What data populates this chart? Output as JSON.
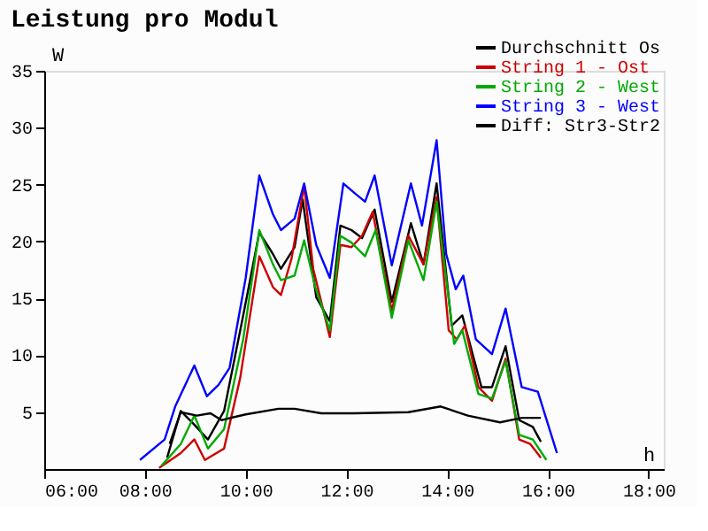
{
  "chart_data": {
    "type": "line",
    "title": "Leistung pro Modul",
    "xlabel": "h",
    "ylabel": "W",
    "xlim": [
      6,
      18.3
    ],
    "xticks": [
      {
        "value": 6,
        "label": "06:00"
      },
      {
        "value": 8,
        "label": "08:00"
      },
      {
        "value": 10,
        "label": "10:00"
      },
      {
        "value": 12,
        "label": "12:00"
      },
      {
        "value": 14,
        "label": "14:00"
      },
      {
        "value": 16,
        "label": "16:00"
      },
      {
        "value": 18,
        "label": "18:00"
      }
    ],
    "ylim": [
      0,
      35
    ],
    "yticks": [
      5,
      10,
      15,
      20,
      25,
      30,
      35
    ],
    "grid": false,
    "legend": "top right",
    "marker": "none",
    "line_style": "solid",
    "series": [
      {
        "name": "Durchschnitt Os",
        "color": "#000000",
        "x": [
          8.44,
          8.71,
          8.98,
          9.25,
          9.57,
          9.95,
          10.27,
          10.54,
          10.7,
          10.97,
          11.13,
          11.4,
          11.67,
          11.88,
          12.1,
          12.31,
          12.56,
          12.9,
          13.28,
          13.53,
          13.79,
          14.09,
          14.3,
          14.68,
          14.89,
          15.16,
          15.43,
          15.7,
          15.86
        ],
        "values": [
          1,
          5.1,
          3.9,
          2.6,
          5.1,
          13.5,
          20.8,
          18.9,
          17.6,
          19.5,
          23.7,
          15.1,
          13,
          21.4,
          21,
          20.3,
          22.8,
          14.7,
          21.6,
          18,
          25.1,
          12.6,
          13.5,
          7.2,
          7.2,
          10.8,
          4.3,
          3.7,
          2.4
        ]
      },
      {
        "name": "String 1 - Ost",
        "color": "#cc0000",
        "x": [
          8.28,
          8.71,
          8.98,
          9.19,
          9.57,
          9.89,
          10.27,
          10.54,
          10.7,
          10.91,
          11.16,
          11.34,
          11.67,
          11.88,
          12.1,
          12.31,
          12.52,
          12.9,
          13.23,
          13.53,
          13.79,
          14.03,
          14.19,
          14.35,
          14.62,
          14.89,
          15.16,
          15.43,
          15.65,
          15.86
        ],
        "values": [
          0.1,
          1.4,
          2.6,
          0.8,
          1.8,
          8,
          18.7,
          16,
          15.3,
          18.5,
          24.9,
          17.6,
          11.6,
          19.7,
          19.5,
          20.5,
          22.6,
          13.9,
          20.5,
          18,
          23.9,
          12.2,
          11.4,
          12.6,
          7.2,
          6,
          9.7,
          2.6,
          2.2,
          1
        ]
      },
      {
        "name": "String 2 - West",
        "color": "#00aa00",
        "x": [
          8.33,
          8.71,
          8.98,
          9.25,
          9.57,
          9.95,
          10.27,
          10.54,
          10.7,
          10.97,
          11.16,
          11.38,
          11.67,
          11.88,
          12.1,
          12.37,
          12.58,
          12.9,
          13.23,
          13.53,
          13.79,
          14.14,
          14.3,
          14.62,
          14.89,
          15.16,
          15.43,
          15.7,
          15.97
        ],
        "values": [
          0.3,
          2.2,
          4.7,
          1.8,
          3.5,
          11.4,
          21,
          18,
          16.6,
          17,
          20.1,
          16,
          12.2,
          20.5,
          19.9,
          18.7,
          21,
          13.3,
          20.1,
          16.6,
          23.5,
          11,
          12.2,
          6.6,
          6.2,
          9.5,
          3,
          2.6,
          0.8
        ]
      },
      {
        "name": "String 3 - West",
        "color": "#0000ff",
        "x": [
          7.9,
          8.39,
          8.6,
          8.98,
          9.23,
          9.46,
          9.68,
          10.0,
          10.27,
          10.54,
          10.7,
          10.97,
          11.16,
          11.4,
          11.67,
          11.94,
          12.15,
          12.37,
          12.56,
          12.9,
          13.28,
          13.5,
          13.79,
          13.98,
          14.17,
          14.32,
          14.57,
          14.89,
          15.16,
          15.48,
          15.8,
          16.18
        ],
        "values": [
          0.8,
          2.6,
          5.5,
          9.1,
          6.4,
          7.4,
          8.9,
          16.8,
          25.8,
          22.4,
          21,
          22,
          25.1,
          19.7,
          16.8,
          25.1,
          24.3,
          23.5,
          25.8,
          17.9,
          25.1,
          21.4,
          28.9,
          18.9,
          15.8,
          17,
          11.4,
          10.1,
          14.1,
          7.2,
          6.8,
          1.4
        ]
      },
      {
        "name": "Diff: Str3-Str2",
        "color": "#000000",
        "x": [
          8.49,
          8.71,
          9.03,
          9.3,
          9.52,
          10.0,
          10.65,
          10.97,
          11.5,
          12.15,
          13.23,
          13.87,
          14.41,
          15.05,
          15.48,
          15.86
        ],
        "values": [
          2.2,
          5,
          4.7,
          4.9,
          4.3,
          4.8,
          5.3,
          5.3,
          4.9,
          4.9,
          5,
          5.5,
          4.7,
          4.1,
          4.5,
          4.5
        ]
      }
    ]
  }
}
